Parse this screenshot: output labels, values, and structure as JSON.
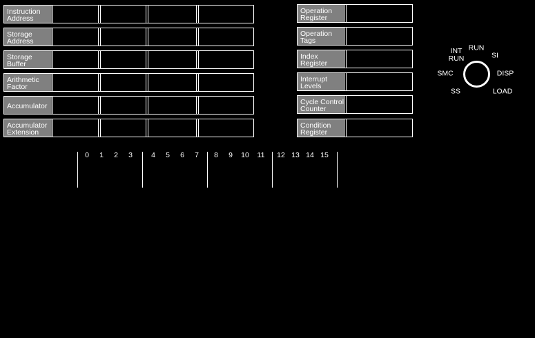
{
  "left_registers": [
    {
      "line1": "Instruction",
      "line2": "Address"
    },
    {
      "line1": "Storage",
      "line2": "Address"
    },
    {
      "line1": "Storage",
      "line2": "Buffer"
    },
    {
      "line1": "Arithmetic",
      "line2": "Factor"
    },
    {
      "line1": "Accumulator",
      "line2": ""
    },
    {
      "line1": "Accumulator",
      "line2": "Extension"
    }
  ],
  "right_registers": [
    {
      "line1": "Operation",
      "line2": "Register"
    },
    {
      "line1": "Operation",
      "line2": "Tags"
    },
    {
      "line1": "Index",
      "line2": "Register"
    },
    {
      "line1": "Interrupt",
      "line2": "Levels"
    },
    {
      "line1": "Cycle Control",
      "line2": "Counter"
    },
    {
      "line1": "Condition",
      "line2": "Register"
    }
  ],
  "mode_dial": {
    "positions": {
      "run": "RUN",
      "int_run_1": "INT",
      "int_run_2": "RUN",
      "si": "SI",
      "smc": "SMC",
      "disp": "DISP",
      "ss": "SS",
      "load": "LOAD"
    }
  },
  "bit_labels": [
    "0",
    "1",
    "2",
    "3",
    "4",
    "5",
    "6",
    "7",
    "8",
    "9",
    "10",
    "11",
    "12",
    "13",
    "14",
    "15"
  ],
  "colors": {
    "background": "#000000",
    "label_bg": "#808080",
    "foreground": "#ffffff"
  }
}
